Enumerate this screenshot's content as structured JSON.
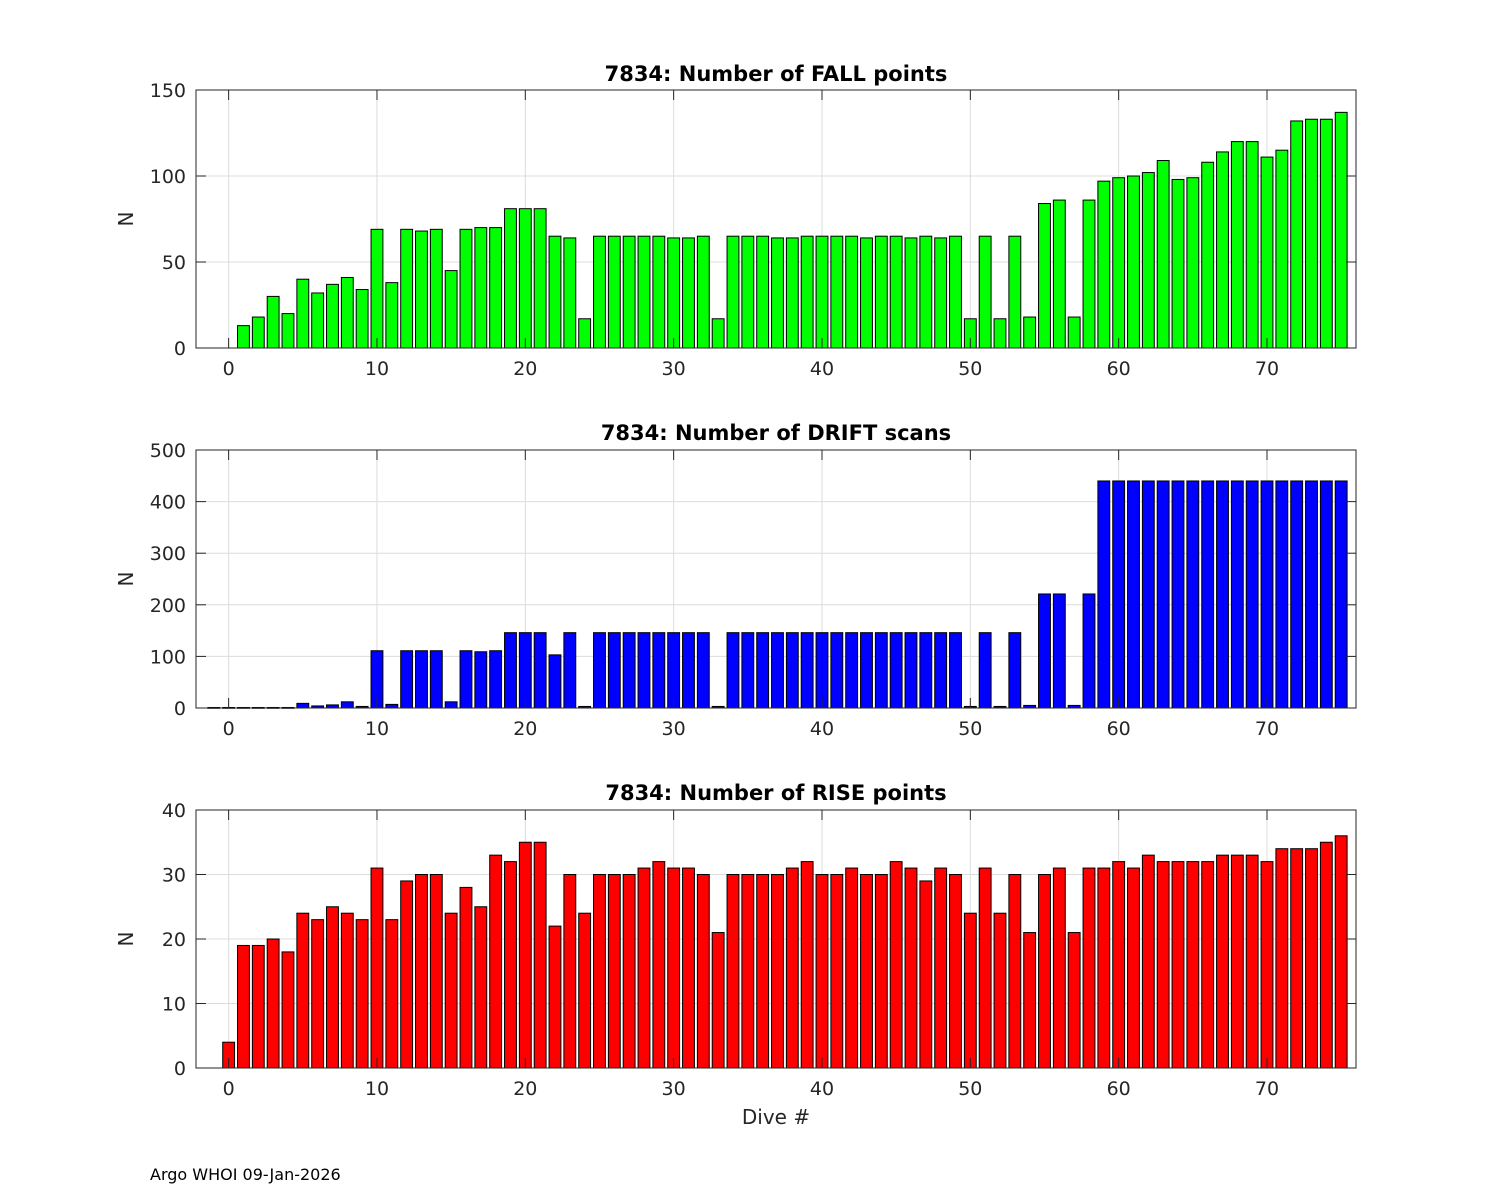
{
  "footer": "Argo WHOI 09-Jan-2026",
  "chart_data": [
    {
      "type": "bar",
      "title": "7834: Number of FALL points",
      "xlabel": "",
      "ylabel": "N",
      "xlim": [
        -2.2,
        76
      ],
      "ylim": [
        0,
        150
      ],
      "xticks": [
        0,
        10,
        20,
        30,
        40,
        50,
        60,
        70
      ],
      "yticks": [
        0,
        50,
        100,
        150
      ],
      "grid": true,
      "color": "#00ff00",
      "x": [
        0,
        1,
        2,
        3,
        4,
        5,
        6,
        7,
        8,
        9,
        10,
        11,
        12,
        13,
        14,
        15,
        16,
        17,
        18,
        19,
        20,
        21,
        22,
        23,
        24,
        25,
        26,
        27,
        28,
        29,
        30,
        31,
        32,
        33,
        34,
        35,
        36,
        37,
        38,
        39,
        40,
        41,
        42,
        43,
        44,
        45,
        46,
        47,
        48,
        49,
        50,
        51,
        52,
        53,
        54,
        55,
        56,
        57,
        58,
        59,
        60,
        61,
        62,
        63,
        64,
        65,
        66,
        67,
        68,
        69,
        70,
        71,
        72,
        73,
        74,
        75
      ],
      "values": [
        0,
        13,
        18,
        30,
        20,
        40,
        32,
        37,
        41,
        34,
        69,
        38,
        69,
        68,
        69,
        45,
        69,
        70,
        70,
        81,
        81,
        81,
        65,
        64,
        17,
        65,
        65,
        65,
        65,
        65,
        64,
        64,
        65,
        17,
        65,
        65,
        65,
        64,
        64,
        65,
        65,
        65,
        65,
        64,
        65,
        65,
        64,
        65,
        64,
        65,
        17,
        65,
        17,
        65,
        18,
        84,
        86,
        18,
        86,
        97,
        99,
        100,
        102,
        109,
        98,
        99,
        108,
        114,
        120,
        120,
        111,
        115,
        132,
        133,
        133,
        137
      ]
    },
    {
      "type": "bar",
      "title": "7834: Number of DRIFT scans",
      "xlabel": "",
      "ylabel": "N",
      "xlim": [
        -2.2,
        76
      ],
      "ylim": [
        0,
        500
      ],
      "xticks": [
        0,
        10,
        20,
        30,
        40,
        50,
        60,
        70
      ],
      "yticks": [
        0,
        100,
        200,
        300,
        400,
        500
      ],
      "grid": true,
      "color": "#0000ff",
      "x": [
        -1,
        0,
        1,
        2,
        3,
        4,
        5,
        6,
        7,
        8,
        9,
        10,
        11,
        12,
        13,
        14,
        15,
        16,
        17,
        18,
        19,
        20,
        21,
        22,
        23,
        24,
        25,
        26,
        27,
        28,
        29,
        30,
        31,
        32,
        33,
        34,
        35,
        36,
        37,
        38,
        39,
        40,
        41,
        42,
        43,
        44,
        45,
        46,
        47,
        48,
        49,
        50,
        51,
        52,
        53,
        54,
        55,
        56,
        57,
        58,
        59,
        60,
        61,
        62,
        63,
        64,
        65,
        66,
        67,
        68,
        69,
        70,
        71,
        72,
        73,
        74,
        75
      ],
      "values": [
        1,
        1,
        1,
        1,
        1,
        1,
        9,
        4,
        6,
        12,
        3,
        111,
        7,
        111,
        111,
        111,
        12,
        111,
        109,
        111,
        146,
        146,
        146,
        103,
        146,
        3,
        146,
        146,
        146,
        146,
        146,
        146,
        146,
        146,
        3,
        146,
        146,
        146,
        146,
        146,
        146,
        146,
        146,
        146,
        146,
        146,
        146,
        146,
        146,
        146,
        146,
        3,
        146,
        3,
        146,
        5,
        221,
        221,
        5,
        221,
        440,
        440,
        440,
        440,
        440,
        440,
        440,
        440,
        440,
        440,
        440,
        440,
        440,
        440,
        440,
        440,
        440
      ]
    },
    {
      "type": "bar",
      "title": "7834: Number of RISE points",
      "xlabel": "Dive #",
      "ylabel": "N",
      "xlim": [
        -2.2,
        76
      ],
      "ylim": [
        0,
        40
      ],
      "xticks": [
        0,
        10,
        20,
        30,
        40,
        50,
        60,
        70
      ],
      "yticks": [
        0,
        10,
        20,
        30,
        40
      ],
      "grid": true,
      "color": "#ff0000",
      "x": [
        0,
        1,
        2,
        3,
        4,
        5,
        6,
        7,
        8,
        9,
        10,
        11,
        12,
        13,
        14,
        15,
        16,
        17,
        18,
        19,
        20,
        21,
        22,
        23,
        24,
        25,
        26,
        27,
        28,
        29,
        30,
        31,
        32,
        33,
        34,
        35,
        36,
        37,
        38,
        39,
        40,
        41,
        42,
        43,
        44,
        45,
        46,
        47,
        48,
        49,
        50,
        51,
        52,
        53,
        54,
        55,
        56,
        57,
        58,
        59,
        60,
        61,
        62,
        63,
        64,
        65,
        66,
        67,
        68,
        69,
        70,
        71,
        72,
        73,
        74,
        75
      ],
      "values": [
        4,
        19,
        19,
        20,
        18,
        24,
        23,
        25,
        24,
        23,
        31,
        23,
        29,
        30,
        30,
        24,
        28,
        25,
        33,
        32,
        35,
        35,
        22,
        30,
        24,
        30,
        30,
        30,
        31,
        32,
        31,
        31,
        30,
        21,
        30,
        30,
        30,
        30,
        31,
        32,
        30,
        30,
        31,
        30,
        30,
        32,
        31,
        29,
        31,
        30,
        24,
        31,
        24,
        30,
        21,
        30,
        31,
        21,
        31,
        31,
        32,
        31,
        33,
        32,
        32,
        32,
        32,
        33,
        33,
        33,
        32,
        34,
        34,
        34,
        35,
        36
      ]
    }
  ]
}
